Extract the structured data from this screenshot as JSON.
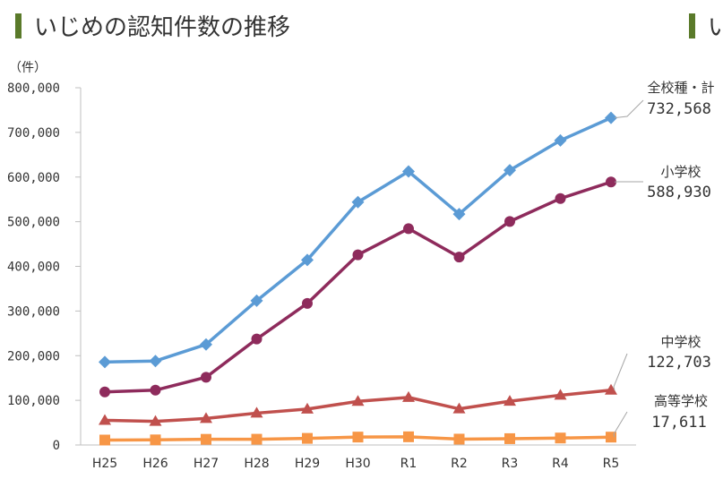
{
  "page_title": "いじめの認知件数の推移",
  "page_title_right": "い",
  "colors": {
    "title_bar": "#5a7a2a",
    "all": "#5b9bd5",
    "elementary": "#8e2b5c",
    "junior": "#c0504d",
    "high": "#f79646"
  },
  "chart_data": {
    "type": "line",
    "yunit": "（件）",
    "ylim": [
      0,
      800000
    ],
    "yticks": [
      "0",
      "100,000",
      "200,000",
      "300,000",
      "400,000",
      "500,000",
      "600,000",
      "700,000",
      "800,000"
    ],
    "categories": [
      "H25",
      "H26",
      "H27",
      "H28",
      "H29",
      "H30",
      "R1",
      "R2",
      "R3",
      "R4",
      "R5"
    ],
    "series": [
      {
        "name": "全校種・計",
        "label_value": "732,568",
        "color": "#5b9bd5",
        "marker": "diamond",
        "values": [
          185803,
          188072,
          225132,
          323143,
          414378,
          543933,
          612496,
          517163,
          615351,
          681948,
          732568
        ]
      },
      {
        "name": "小学校",
        "label_value": "588,930",
        "color": "#8e2b5c",
        "marker": "circle",
        "values": [
          118748,
          122734,
          151692,
          237256,
          317121,
          425844,
          484545,
          420897,
          500562,
          551944,
          588930
        ]
      },
      {
        "name": "中学校",
        "label_value": "122,703",
        "color": "#c0504d",
        "marker": "triangle",
        "values": [
          55248,
          52971,
          59502,
          71309,
          80424,
          97704,
          106524,
          80877,
          97937,
          111404,
          122703
        ]
      },
      {
        "name": "高等学校",
        "label_value": "17,611",
        "color": "#f79646",
        "marker": "square",
        "values": [
          11039,
          11404,
          12664,
          12874,
          14789,
          17709,
          18352,
          13126,
          14157,
          15568,
          17611
        ]
      }
    ]
  }
}
